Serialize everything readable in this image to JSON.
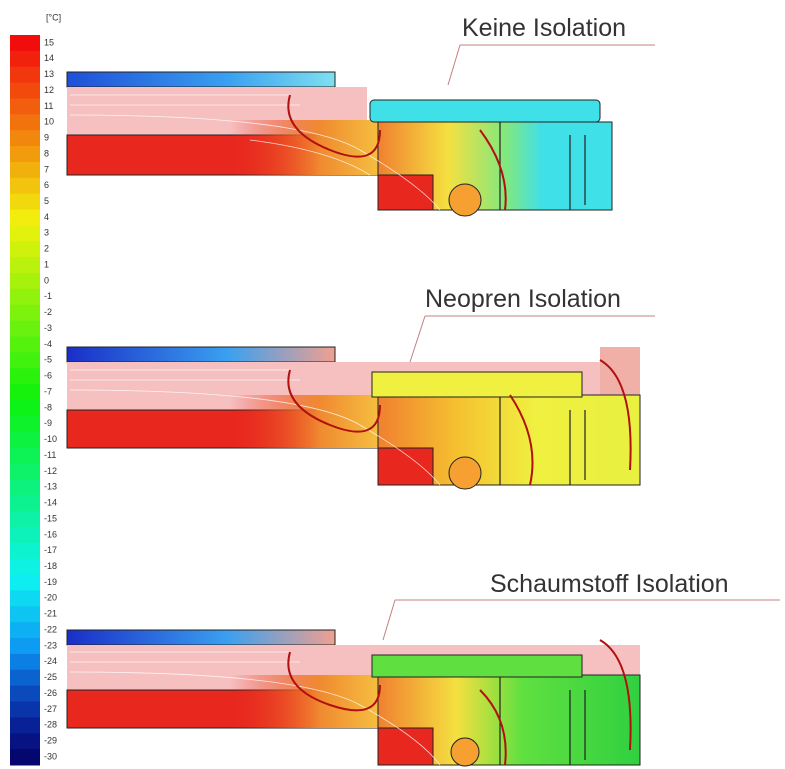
{
  "scale": {
    "unit": "[°C]",
    "labels": [
      15,
      14,
      13,
      12,
      11,
      10,
      9,
      8,
      7,
      6,
      5,
      4,
      3,
      2,
      1,
      0,
      -1,
      -2,
      -3,
      -4,
      -5,
      -6,
      -7,
      -8,
      -9,
      -10,
      -11,
      -12,
      -13,
      -14,
      -15,
      -16,
      -17,
      -18,
      -19,
      -20,
      -21,
      -22,
      -23,
      -24,
      -25,
      -26,
      -27,
      -28,
      -29,
      -30
    ]
  },
  "panels": [
    {
      "title": "Keine Isolation"
    },
    {
      "title": "Neopren Isolation"
    },
    {
      "title": "Schaumstoff Isolation"
    }
  ]
}
